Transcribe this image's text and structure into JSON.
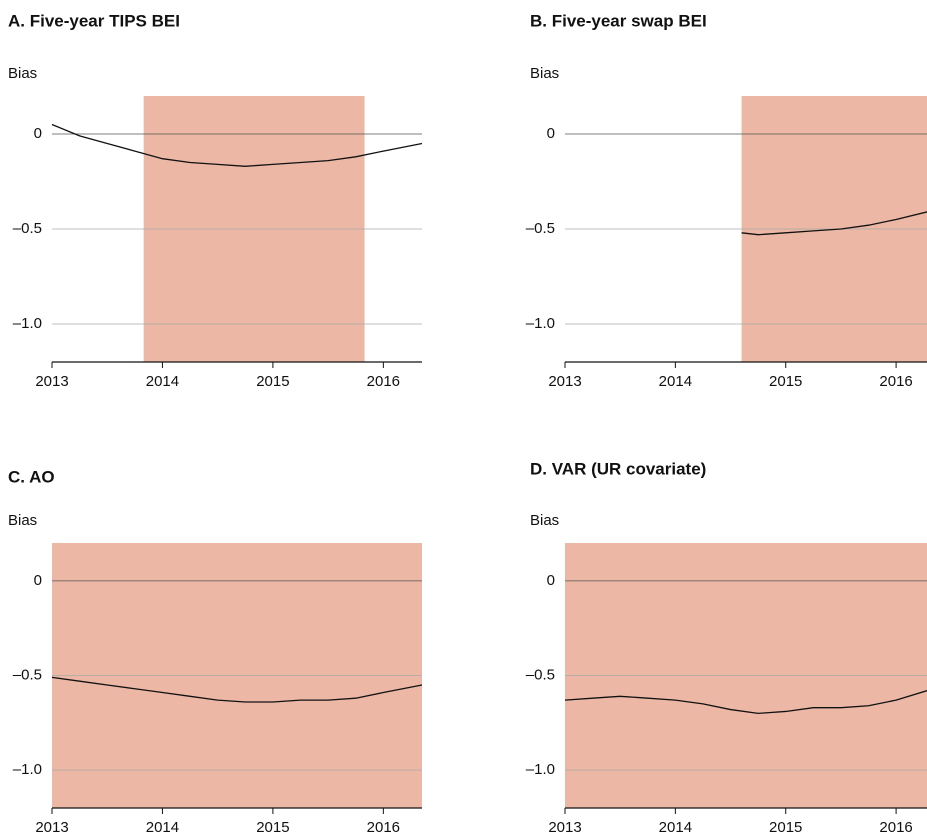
{
  "chart_data": [
    {
      "type": "line",
      "title": "A. Five-year TIPS BEI",
      "ylabel": "Bias",
      "color": "#111111",
      "shade": [
        2013.83,
        2015.83
      ],
      "shade_color": "#ecb8a5",
      "x": [
        2013.0,
        2013.25,
        2013.5,
        2013.75,
        2014.0,
        2014.25,
        2014.5,
        2014.75,
        2015.0,
        2015.25,
        2015.5,
        2015.75,
        2016.0,
        2016.35
      ],
      "values": [
        0.05,
        -0.01,
        -0.05,
        -0.09,
        -0.13,
        -0.15,
        -0.16,
        -0.17,
        -0.16,
        -0.15,
        -0.14,
        -0.12,
        -0.09,
        -0.05
      ],
      "xlim": [
        2013,
        2016.35
      ],
      "ylim": [
        -1.2,
        0.2
      ],
      "xticks": [
        2013,
        2014,
        2015,
        2016
      ],
      "yticks": [
        {
          "value": 0,
          "label": "0"
        },
        {
          "value": -0.5,
          "label": "–0.5"
        },
        {
          "value": -1.0,
          "label": "–1.0"
        }
      ],
      "grid": true
    },
    {
      "type": "line",
      "title": "B. Five-year swap BEI",
      "ylabel": "Bias",
      "color": "#111111",
      "shade": [
        2014.6,
        2016.28
      ],
      "shade_color": "#ecb8a5",
      "x": [
        2014.6,
        2014.75,
        2015.0,
        2015.25,
        2015.5,
        2015.75,
        2016.0,
        2016.28
      ],
      "values": [
        -0.52,
        -0.53,
        -0.52,
        -0.51,
        -0.5,
        -0.48,
        -0.45,
        -0.41
      ],
      "xlim": [
        2013,
        2016.28
      ],
      "ylim": [
        -1.2,
        0.2
      ],
      "xticks": [
        2013,
        2014,
        2015,
        2016
      ],
      "yticks": [
        {
          "value": 0,
          "label": "0"
        },
        {
          "value": -0.5,
          "label": "–0.5"
        },
        {
          "value": -1.0,
          "label": "–1.0"
        }
      ],
      "grid": true
    },
    {
      "type": "line",
      "title": "C. AO",
      "ylabel": "Bias",
      "color": "#111111",
      "shade": [
        2013,
        2016.35
      ],
      "shade_color": "#ecb8a5",
      "x": [
        2013.0,
        2013.25,
        2013.5,
        2013.75,
        2014.0,
        2014.25,
        2014.5,
        2014.75,
        2015.0,
        2015.25,
        2015.5,
        2015.75,
        2016.0,
        2016.35
      ],
      "values": [
        -0.51,
        -0.53,
        -0.55,
        -0.57,
        -0.59,
        -0.61,
        -0.63,
        -0.64,
        -0.64,
        -0.63,
        -0.63,
        -0.62,
        -0.59,
        -0.55
      ],
      "xlim": [
        2013,
        2016.35
      ],
      "ylim": [
        -1.2,
        0.2
      ],
      "xticks": [
        2013,
        2014,
        2015,
        2016
      ],
      "yticks": [
        {
          "value": 0,
          "label": "0"
        },
        {
          "value": -0.5,
          "label": "–0.5"
        },
        {
          "value": -1.0,
          "label": "–1.0"
        }
      ],
      "grid": true
    },
    {
      "type": "line",
      "title": "D. VAR (UR covariate)",
      "ylabel": "Bias",
      "color": "#111111",
      "shade": [
        2013,
        2016.28
      ],
      "shade_color": "#ecb8a5",
      "x": [
        2013.0,
        2013.25,
        2013.5,
        2013.75,
        2014.0,
        2014.25,
        2014.5,
        2014.75,
        2015.0,
        2015.25,
        2015.5,
        2015.75,
        2016.0,
        2016.28
      ],
      "values": [
        -0.63,
        -0.62,
        -0.61,
        -0.62,
        -0.63,
        -0.65,
        -0.68,
        -0.7,
        -0.69,
        -0.67,
        -0.67,
        -0.66,
        -0.63,
        -0.58
      ],
      "xlim": [
        2013,
        2016.28
      ],
      "ylim": [
        -1.2,
        0.2
      ],
      "xticks": [
        2013,
        2014,
        2015,
        2016
      ],
      "yticks": [
        {
          "value": 0,
          "label": "0"
        },
        {
          "value": -0.5,
          "label": "–0.5"
        },
        {
          "value": -1.0,
          "label": "–1.0"
        }
      ],
      "grid": true
    }
  ]
}
